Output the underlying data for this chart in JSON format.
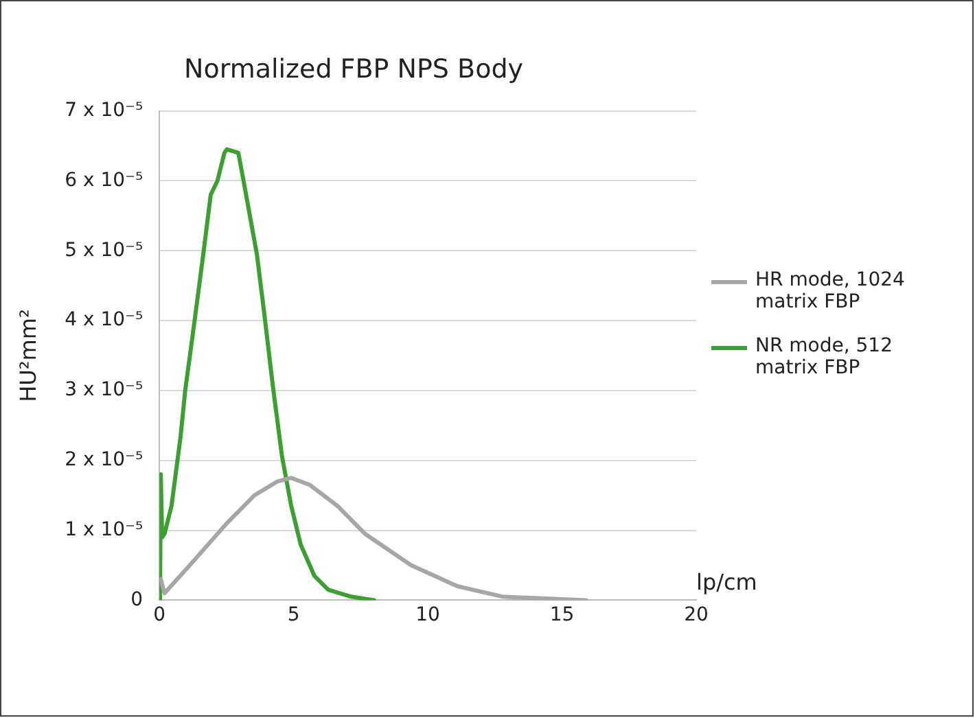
{
  "chart_data": {
    "type": "line",
    "title": "Normalized FBP NPS Body",
    "xlabel": "lp/cm",
    "ylabel": "HU²mm²",
    "xlim": [
      0,
      20
    ],
    "xticks": [
      0,
      5,
      10,
      15,
      20
    ],
    "ylim": [
      0,
      7e-05
    ],
    "yticks": [
      0,
      {
        "value": 1e-05,
        "label": "1 x 10⁻⁵"
      },
      {
        "value": 2e-05,
        "label": "2 x 10⁻⁵"
      },
      {
        "value": 3e-05,
        "label": "3 x 10⁻⁵"
      },
      {
        "value": 4e-05,
        "label": "4 x 10⁻⁵"
      },
      {
        "value": 5e-05,
        "label": "5 x 10⁻⁵"
      },
      {
        "value": 6e-05,
        "label": "6 x 10⁻⁵"
      },
      {
        "value": 7e-05,
        "label": "7 x 10⁻⁵"
      }
    ],
    "grid": "y",
    "legend": "right",
    "marker": "none",
    "line_style": "solid",
    "series": [
      {
        "name": "HR mode, 1024 matrix FBP",
        "color": "#a6a6a6",
        "x": [
          0.05,
          0.19,
          1.13,
          2.51,
          3.54,
          4.4,
          4.91,
          5.6,
          6.63,
          7.66,
          9.38,
          11.1,
          12.8,
          15.9
        ],
        "values": [
          3e-06,
          1e-06,
          5e-06,
          1.1e-05,
          1.5e-05,
          1.7e-05,
          1.75e-05,
          1.65e-05,
          1.35e-05,
          9.5e-06,
          5e-06,
          2e-06,
          5e-07,
          0
        ]
      },
      {
        "name": "NR mode, 512 matrix FBP",
        "color": "#3c9e33",
        "x": [
          0.02,
          0.05,
          0.1,
          0.19,
          0.45,
          0.79,
          0.96,
          1.31,
          1.65,
          1.91,
          2.16,
          2.42,
          2.51,
          2.94,
          3.11,
          3.37,
          3.63,
          3.89,
          4.23,
          4.57,
          4.91,
          5.26,
          5.77,
          6.29,
          7.15,
          8.0
        ],
        "values": [
          0,
          1.8e-05,
          9e-06,
          9.5e-06,
          1.35e-05,
          2.35e-05,
          3e-05,
          4e-05,
          5e-05,
          5.8e-05,
          6e-05,
          6.4e-05,
          6.45e-05,
          6.4e-05,
          6.05e-05,
          5.5e-05,
          4.95e-05,
          4.15e-05,
          3.05e-05,
          2.05e-05,
          1.35e-05,
          8e-06,
          3.5e-06,
          1.5e-06,
          5e-07,
          0
        ]
      }
    ]
  }
}
